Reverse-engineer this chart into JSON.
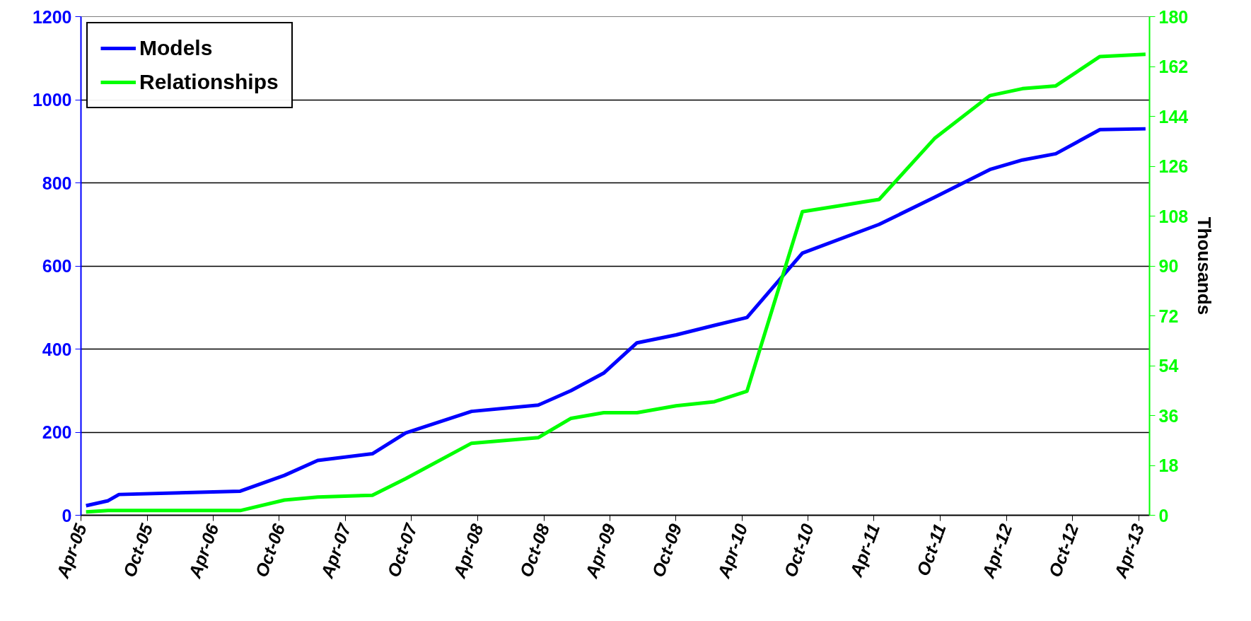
{
  "chart_data": {
    "type": "line",
    "x": [
      "2005-04-15",
      "2005-06-15",
      "2005-07-15",
      "2006-06-15",
      "2006-10-15",
      "2007-01-15",
      "2007-06-15",
      "2007-09-15",
      "2008-03-15",
      "2008-09-15",
      "2008-12-15",
      "2009-03-15",
      "2009-06-15",
      "2009-10-01",
      "2010-01-15",
      "2010-04-15",
      "2010-09-15",
      "2011-04-15",
      "2011-09-15",
      "2012-02-15",
      "2012-05-15",
      "2012-08-15",
      "2012-12-15",
      "2013-04-20"
    ],
    "series": [
      {
        "name": "Models",
        "color": "#0000ff",
        "values": [
          23,
          35,
          50,
          58,
          96,
          132,
          148,
          198,
          250,
          265,
          300,
          342,
          415,
          434,
          457,
          476,
          631,
          700,
          765,
          832,
          855,
          870,
          928,
          930
        ]
      },
      {
        "name": "Relationships",
        "color": "#00ff00",
        "axis": "y2",
        "values": [
          1.2,
          1.7,
          1.7,
          1.7,
          5.5,
          6.6,
          7.2,
          13.2,
          26,
          28,
          35,
          37,
          37,
          39.5,
          41,
          44.8,
          109.6,
          114,
          136,
          151.5,
          154,
          155,
          165.6,
          166.4
        ]
      }
    ],
    "y2label": "Thousands",
    "xlim": [
      "2005-04-01",
      "2013-05-01"
    ],
    "xticks": [
      {
        "value": "2005-04-01",
        "label": "Apr-05"
      },
      {
        "value": "2005-10-01",
        "label": "Oct-05"
      },
      {
        "value": "2006-04-01",
        "label": "Apr-06"
      },
      {
        "value": "2006-10-01",
        "label": "Oct-06"
      },
      {
        "value": "2007-04-01",
        "label": "Apr-07"
      },
      {
        "value": "2007-10-01",
        "label": "Oct-07"
      },
      {
        "value": "2008-04-01",
        "label": "Apr-08"
      },
      {
        "value": "2008-10-01",
        "label": "Oct-08"
      },
      {
        "value": "2009-04-01",
        "label": "Apr-09"
      },
      {
        "value": "2009-10-01",
        "label": "Oct-09"
      },
      {
        "value": "2010-04-01",
        "label": "Apr-10"
      },
      {
        "value": "2010-10-01",
        "label": "Oct-10"
      },
      {
        "value": "2011-04-01",
        "label": "Apr-11"
      },
      {
        "value": "2011-10-01",
        "label": "Oct-11"
      },
      {
        "value": "2012-04-01",
        "label": "Apr-12"
      },
      {
        "value": "2012-10-01",
        "label": "Oct-12"
      },
      {
        "value": "2013-04-01",
        "label": "Apr-13"
      }
    ],
    "ylim": [
      0,
      1200
    ],
    "yticks": [
      0,
      200,
      400,
      600,
      800,
      1000,
      1200
    ],
    "y2lim": [
      0,
      180
    ],
    "y2ticks": [
      0,
      18,
      36,
      54,
      72,
      90,
      108,
      126,
      144,
      162,
      180
    ],
    "grid": "y",
    "legend": "top left",
    "marker": "none",
    "line_style": "solid"
  }
}
